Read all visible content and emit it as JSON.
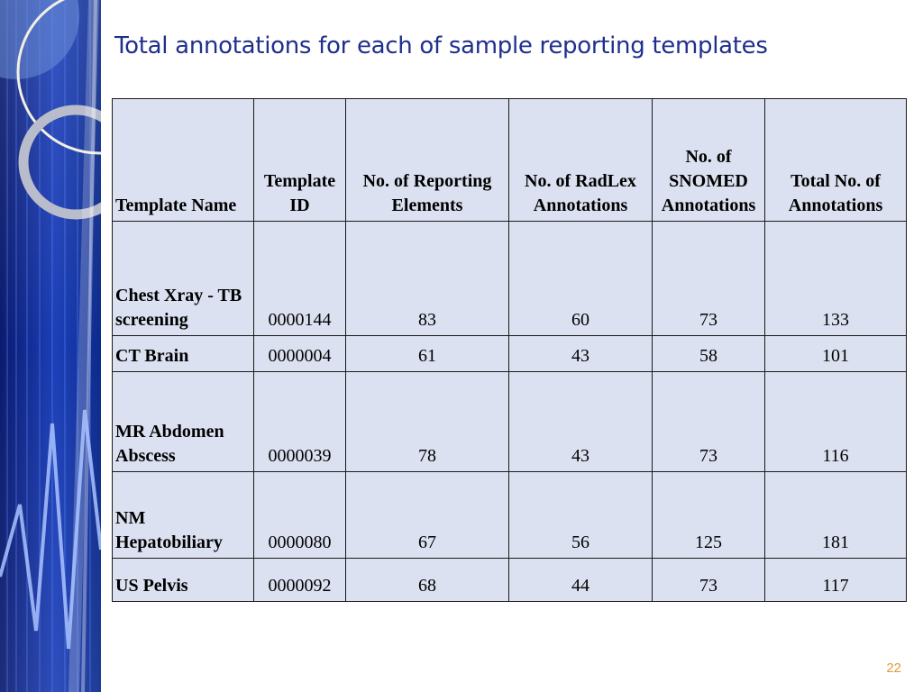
{
  "slide": {
    "title": "Total annotations for each of sample reporting templates",
    "page_number": "22"
  },
  "table": {
    "headers": [
      "Template Name",
      "Template ID",
      "No. of Reporting Elements",
      "No. of RadLex Annotations",
      "No. of SNOMED Annotations",
      "Total No. of Annotations"
    ],
    "rows": [
      [
        "Chest Xray - TB screening",
        "0000144",
        "83",
        "60",
        "73",
        "133"
      ],
      [
        "CT Brain",
        "0000004",
        "61",
        "43",
        "58",
        "101"
      ],
      [
        "MR Abdomen Abscess",
        "0000039",
        "78",
        "43",
        "73",
        "116"
      ],
      [
        "NM Hepatobiliary",
        "0000080",
        "67",
        "56",
        "125",
        "181"
      ],
      [
        "US Pelvis",
        "0000092",
        "68",
        "44",
        "73",
        "117"
      ]
    ]
  },
  "colors": {
    "title": "#1f2f8e",
    "table_fill": "#dbe1f0",
    "page_number": "#e29a3f",
    "sidebar_dark": "#0a1a6e",
    "sidebar_light": "#2f5fe0"
  }
}
